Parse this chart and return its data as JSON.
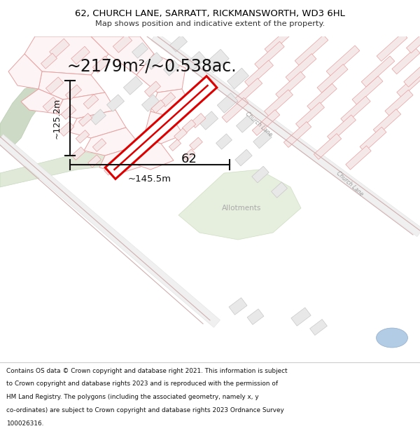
{
  "title_line1": "62, CHURCH LANE, SARRATT, RICKMANSWORTH, WD3 6HL",
  "title_line2": "Map shows position and indicative extent of the property.",
  "area_text": "~2179m²/~0.538ac.",
  "dim_vertical": "~125.2m",
  "dim_horizontal": "~145.5m",
  "label_62": "62",
  "label_allotments": "Allotments",
  "footer_lines": [
    "Contains OS data © Crown copyright and database right 2021. This information is subject",
    "to Crown copyright and database rights 2023 and is reproduced with the permission of",
    "HM Land Registry. The polygons (including the associated geometry, namely x, y",
    "co-ordinates) are subject to Crown copyright and database rights 2023 Ordnance Survey",
    "100026316."
  ],
  "bg_color": "#ffffff",
  "map_bg": "#fdfafa",
  "highlight_color": "#dd0000",
  "building_fill": "#f5e8e8",
  "building_edge": "#e8a0a0",
  "green_light": "#dde8d5",
  "green_park": "#cddac5",
  "road_color": "#dddddd",
  "text_dark": "#111111",
  "text_gray": "#aaaaaa",
  "dim_color": "#111111"
}
